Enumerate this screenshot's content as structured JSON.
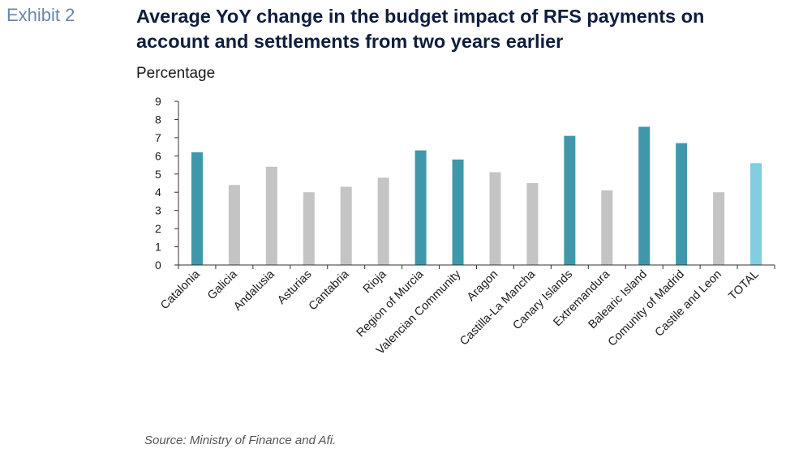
{
  "header": {
    "exhibit": "Exhibit 2",
    "title": "Average YoY change in the budget impact of RFS payments on account and settlements from two years earlier",
    "unit_label": "Percentage"
  },
  "footer": {
    "source": "Source: Ministry of Finance and Afi."
  },
  "colors": {
    "highlight": "#3e98aa",
    "other": "#c4c4c4",
    "total": "#82cde2"
  },
  "chart_data": {
    "type": "bar",
    "ylabel": "Percentage",
    "ylim": [
      0,
      9
    ],
    "yticks": [
      "0",
      "1",
      "2",
      "3",
      "4",
      "5",
      "6",
      "7",
      "8",
      "9"
    ],
    "grid": false,
    "legend": "none",
    "categories": [
      "Catalonia",
      "Galicia",
      "Andalusia",
      "Asturias",
      "Cantabria",
      "Rioja",
      "Region of Murcia",
      "Valencian Community",
      "Aragon",
      "Castilla-La Mancha",
      "Canary Islands",
      "Extremandura",
      "Balearic Island",
      "Comunity of Madrid",
      "Castile and Leon",
      "TOTAL"
    ],
    "values": [
      6.2,
      4.4,
      5.4,
      4.0,
      4.3,
      4.8,
      6.3,
      5.8,
      5.1,
      4.5,
      7.1,
      4.1,
      7.6,
      6.7,
      4.0,
      5.6
    ],
    "bar_group": [
      "highlight",
      "other",
      "other",
      "other",
      "other",
      "other",
      "highlight",
      "highlight",
      "other",
      "other",
      "highlight",
      "other",
      "highlight",
      "highlight",
      "other",
      "total"
    ]
  }
}
